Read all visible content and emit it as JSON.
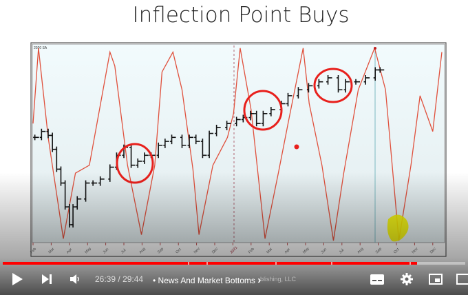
{
  "slide": {
    "title": "Inflection Point Buys"
  },
  "chart_data": {
    "type": "line",
    "corner_label": "2020 SA",
    "x_tick_labels": [
      "Feb",
      "Mar",
      "Apr",
      "May",
      "Jun",
      "Jul",
      "Aug",
      "Sep",
      "Oct",
      "Nov",
      "Dec",
      "2021",
      "Feb",
      "Mar",
      "Apr",
      "May",
      "Jun",
      "Jul",
      "Aug",
      "Sep",
      "Oct",
      "Nov",
      "Dec"
    ],
    "xlim": [
      "2020-02-01",
      "2022-01-01"
    ],
    "ylim": [
      0,
      100
    ],
    "grid": false,
    "series": [
      {
        "kind": "oscillator",
        "color": "#e0503c",
        "points": [
          [
            "2020-02-01",
            60
          ],
          [
            "2020-02-10",
            98
          ],
          [
            "2020-02-26",
            53
          ],
          [
            "2020-03-21",
            2
          ],
          [
            "2020-04-11",
            35
          ],
          [
            "2020-05-04",
            39
          ],
          [
            "2020-06-08",
            96
          ],
          [
            "2020-06-16",
            89
          ],
          [
            "2020-07-07",
            39
          ],
          [
            "2020-07-30",
            4
          ],
          [
            "2020-08-22",
            39
          ],
          [
            "2020-09-04",
            86
          ],
          [
            "2020-09-22",
            96
          ],
          [
            "2020-10-07",
            77
          ],
          [
            "2020-10-25",
            37
          ],
          [
            "2020-11-05",
            4
          ],
          [
            "2020-11-28",
            39
          ],
          [
            "2020-12-22",
            53
          ],
          [
            "2021-01-02",
            65
          ],
          [
            "2021-01-13",
            98
          ],
          [
            "2021-02-01",
            67
          ],
          [
            "2021-02-24",
            2
          ],
          [
            "2021-03-16",
            35
          ],
          [
            "2021-04-04",
            63
          ],
          [
            "2021-04-27",
            98
          ],
          [
            "2021-05-07",
            70
          ],
          [
            "2021-05-28",
            39
          ],
          [
            "2021-06-17",
            1
          ],
          [
            "2021-07-04",
            35
          ],
          [
            "2021-07-28",
            77
          ],
          [
            "2021-08-25",
            98
          ],
          [
            "2021-09-13",
            77
          ],
          [
            "2021-10-05",
            1
          ],
          [
            "2021-10-25",
            39
          ],
          [
            "2021-11-10",
            74
          ],
          [
            "2021-12-01",
            56
          ],
          [
            "2021-12-16",
            96
          ]
        ]
      },
      {
        "kind": "price",
        "color": "#111111",
        "points": [
          [
            "2020-02-04",
            53
          ],
          [
            "2020-02-15",
            56
          ],
          [
            "2020-02-26",
            54
          ],
          [
            "2020-03-03",
            47
          ],
          [
            "2020-03-10",
            37
          ],
          [
            "2020-03-17",
            30
          ],
          [
            "2020-03-24",
            18
          ],
          [
            "2020-03-31",
            9
          ],
          [
            "2020-04-07",
            18
          ],
          [
            "2020-04-14",
            22
          ],
          [
            "2020-04-28",
            30
          ],
          [
            "2020-05-10",
            30
          ],
          [
            "2020-05-22",
            32
          ],
          [
            "2020-06-08",
            38
          ],
          [
            "2020-06-19",
            44
          ],
          [
            "2020-07-01",
            48
          ],
          [
            "2020-07-13",
            39
          ],
          [
            "2020-07-24",
            41
          ],
          [
            "2020-08-05",
            44
          ],
          [
            "2020-08-16",
            44
          ],
          [
            "2020-08-28",
            49
          ],
          [
            "2020-09-09",
            51
          ],
          [
            "2020-09-20",
            53
          ],
          [
            "2020-10-07",
            49
          ],
          [
            "2020-10-19",
            53
          ],
          [
            "2020-10-30",
            51
          ],
          [
            "2020-11-11",
            44
          ],
          [
            "2020-11-22",
            55
          ],
          [
            "2020-12-04",
            58
          ],
          [
            "2020-12-21",
            60
          ],
          [
            "2021-01-07",
            62
          ],
          [
            "2021-01-18",
            63
          ],
          [
            "2021-01-30",
            65
          ],
          [
            "2021-02-10",
            60
          ],
          [
            "2021-02-21",
            65
          ],
          [
            "2021-03-04",
            67
          ],
          [
            "2021-03-21",
            70
          ],
          [
            "2021-04-02",
            74
          ],
          [
            "2021-04-19",
            77
          ],
          [
            "2021-05-06",
            79
          ],
          [
            "2021-05-23",
            81
          ],
          [
            "2021-06-08",
            83
          ],
          [
            "2021-06-25",
            77
          ],
          [
            "2021-07-07",
            81
          ],
          [
            "2021-07-24",
            81
          ],
          [
            "2021-08-10",
            83
          ],
          [
            "2021-08-26",
            87
          ],
          [
            "2021-09-04",
            87
          ]
        ]
      }
    ],
    "annotations": {
      "circles": [
        "2020-07",
        "2021-02",
        "2021-06"
      ],
      "circle_color": "#e8201c",
      "highlight_color": "#f2f200",
      "marker_color": "#e8201c"
    }
  },
  "player": {
    "progress_percent": 89.6,
    "current_time": "26:39",
    "separator": "/",
    "duration": "29:44",
    "chapter": "• News And Market Bottoms",
    "chapter_arrow": "›",
    "underlying_text": "blishing, LLC",
    "buttons": [
      "play",
      "next",
      "volume",
      "subtitles",
      "settings",
      "miniplayer",
      "theater"
    ]
  }
}
